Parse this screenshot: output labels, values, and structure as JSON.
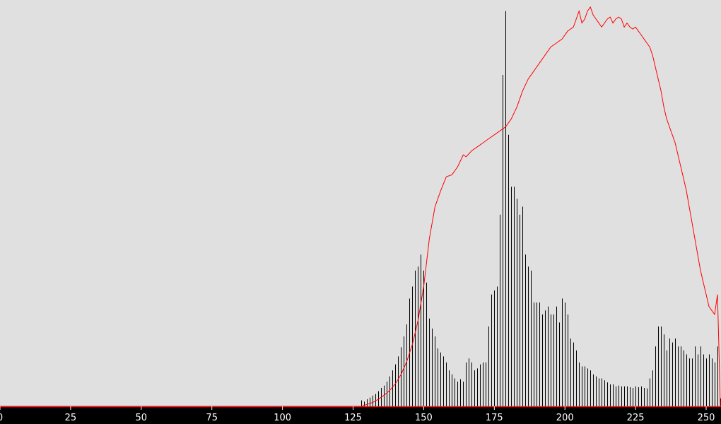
{
  "colors": {
    "background": "#e0e0e0",
    "bars": "#000000",
    "curve": "#ff0000",
    "axis_bar": "#000000",
    "tick_text": "#ffffff"
  },
  "chart_data": {
    "type": "bar",
    "title": "",
    "xlabel": "",
    "ylabel": "",
    "xlim": [
      0,
      255
    ],
    "ylim": [
      0,
      1.0
    ],
    "grid": false,
    "legend": "none",
    "x_ticks": [
      0,
      25,
      50,
      75,
      100,
      125,
      150,
      175,
      200,
      225,
      250
    ],
    "x_tick_labels": [
      "0",
      "25",
      "50",
      "75",
      "100",
      "125",
      "150",
      "175",
      "200",
      "225",
      "250"
    ],
    "series": [
      {
        "kind": "bars",
        "x_start": 0,
        "values": [
          0,
          0,
          0,
          0,
          0,
          0,
          0,
          0,
          0,
          0,
          0,
          0,
          0,
          0,
          0,
          0,
          0,
          0,
          0,
          0,
          0,
          0,
          0,
          0,
          0,
          0,
          0,
          0,
          0,
          0,
          0,
          0,
          0,
          0,
          0,
          0,
          0,
          0,
          0,
          0,
          0,
          0,
          0,
          0,
          0,
          0,
          0,
          0,
          0,
          0,
          0,
          0,
          0,
          0,
          0,
          0,
          0,
          0,
          0,
          0,
          0,
          0,
          0,
          0,
          0,
          0,
          0,
          0,
          0,
          0,
          0,
          0,
          0,
          0,
          0,
          0,
          0,
          0,
          0,
          0,
          0,
          0,
          0,
          0,
          0,
          0,
          0,
          0,
          0,
          0,
          0,
          0,
          0,
          0,
          0,
          0,
          0,
          0,
          0,
          0,
          0,
          0,
          0,
          0,
          0,
          0,
          0,
          0,
          0,
          0,
          0,
          0,
          0,
          0,
          0,
          0,
          0,
          0,
          0,
          0,
          0,
          0,
          0,
          0,
          0,
          0,
          0,
          0,
          0.015,
          0.012,
          0.018,
          0.022,
          0.027,
          0.031,
          0.038,
          0.046,
          0.052,
          0.062,
          0.075,
          0.09,
          0.105,
          0.125,
          0.148,
          0.175,
          0.205,
          0.27,
          0.3,
          0.34,
          0.35,
          0.38,
          0.34,
          0.31,
          0.22,
          0.195,
          0.175,
          0.145,
          0.135,
          0.125,
          0.11,
          0.09,
          0.08,
          0.07,
          0.062,
          0.068,
          0.062,
          0.11,
          0.12,
          0.11,
          0.09,
          0.095,
          0.105,
          0.11,
          0.11,
          0.2,
          0.28,
          0.29,
          0.3,
          0.48,
          0.83,
          0.99,
          0.68,
          0.55,
          0.55,
          0.52,
          0.48,
          0.5,
          0.38,
          0.35,
          0.34,
          0.26,
          0.26,
          0.26,
          0.23,
          0.24,
          0.25,
          0.23,
          0.23,
          0.25,
          0.21,
          0.27,
          0.26,
          0.23,
          0.17,
          0.16,
          0.14,
          0.11,
          0.1,
          0.1,
          0.095,
          0.09,
          0.08,
          0.075,
          0.07,
          0.07,
          0.065,
          0.06,
          0.055,
          0.055,
          0.05,
          0.052,
          0.05,
          0.05,
          0.05,
          0.048,
          0.046,
          0.05,
          0.048,
          0.05,
          0.046,
          0.045,
          0.07,
          0.09,
          0.15,
          0.2,
          0.2,
          0.18,
          0.14,
          0.17,
          0.16,
          0.17,
          0.15,
          0.15,
          0.14,
          0.13,
          0.12,
          0.12,
          0.15,
          0.13,
          0.15,
          0.13,
          0.12,
          0.13,
          0.12,
          0.11,
          0.15,
          0.02
        ]
      },
      {
        "kind": "line",
        "points": [
          [
            0,
            0
          ],
          [
            128,
            0
          ],
          [
            130,
            0.005
          ],
          [
            132,
            0.01
          ],
          [
            134,
            0.018
          ],
          [
            136,
            0.028
          ],
          [
            138,
            0.04
          ],
          [
            140,
            0.057
          ],
          [
            142,
            0.08
          ],
          [
            144,
            0.112
          ],
          [
            146,
            0.155
          ],
          [
            148,
            0.215
          ],
          [
            150,
            0.3
          ],
          [
            152,
            0.42
          ],
          [
            154,
            0.5
          ],
          [
            156,
            0.54
          ],
          [
            158,
            0.575
          ],
          [
            160,
            0.58
          ],
          [
            162,
            0.6
          ],
          [
            164,
            0.63
          ],
          [
            165,
            0.625
          ],
          [
            167,
            0.64
          ],
          [
            169,
            0.65
          ],
          [
            171,
            0.66
          ],
          [
            173,
            0.67
          ],
          [
            175,
            0.68
          ],
          [
            177,
            0.69
          ],
          [
            179,
            0.7
          ],
          [
            181,
            0.72
          ],
          [
            183,
            0.75
          ],
          [
            185,
            0.79
          ],
          [
            187,
            0.82
          ],
          [
            189,
            0.84
          ],
          [
            191,
            0.86
          ],
          [
            193,
            0.88
          ],
          [
            195,
            0.9
          ],
          [
            197,
            0.91
          ],
          [
            199,
            0.92
          ],
          [
            201,
            0.94
          ],
          [
            203,
            0.95
          ],
          [
            204,
            0.97
          ],
          [
            205,
            0.99
          ],
          [
            206,
            0.96
          ],
          [
            207,
            0.97
          ],
          [
            208,
            0.99
          ],
          [
            209,
            1.0
          ],
          [
            210,
            0.98
          ],
          [
            211,
            0.97
          ],
          [
            212,
            0.96
          ],
          [
            213,
            0.95
          ],
          [
            214,
            0.96
          ],
          [
            215,
            0.97
          ],
          [
            216,
            0.975
          ],
          [
            217,
            0.96
          ],
          [
            218,
            0.97
          ],
          [
            219,
            0.975
          ],
          [
            220,
            0.97
          ],
          [
            221,
            0.95
          ],
          [
            222,
            0.96
          ],
          [
            223,
            0.95
          ],
          [
            224,
            0.945
          ],
          [
            225,
            0.95
          ],
          [
            226,
            0.94
          ],
          [
            227,
            0.93
          ],
          [
            228,
            0.92
          ],
          [
            229,
            0.91
          ],
          [
            230,
            0.9
          ],
          [
            231,
            0.88
          ],
          [
            232,
            0.85
          ],
          [
            233,
            0.82
          ],
          [
            234,
            0.79
          ],
          [
            235,
            0.75
          ],
          [
            236,
            0.72
          ],
          [
            237,
            0.7
          ],
          [
            238,
            0.68
          ],
          [
            239,
            0.66
          ],
          [
            240,
            0.63
          ],
          [
            241,
            0.6
          ],
          [
            242,
            0.57
          ],
          [
            243,
            0.54
          ],
          [
            244,
            0.5
          ],
          [
            245,
            0.46
          ],
          [
            246,
            0.42
          ],
          [
            247,
            0.38
          ],
          [
            248,
            0.34
          ],
          [
            249,
            0.31
          ],
          [
            250,
            0.28
          ],
          [
            251,
            0.25
          ],
          [
            252,
            0.24
          ],
          [
            253,
            0.23
          ],
          [
            254,
            0.28
          ],
          [
            254.5,
            0.15
          ],
          [
            255,
            0
          ]
        ]
      }
    ]
  }
}
